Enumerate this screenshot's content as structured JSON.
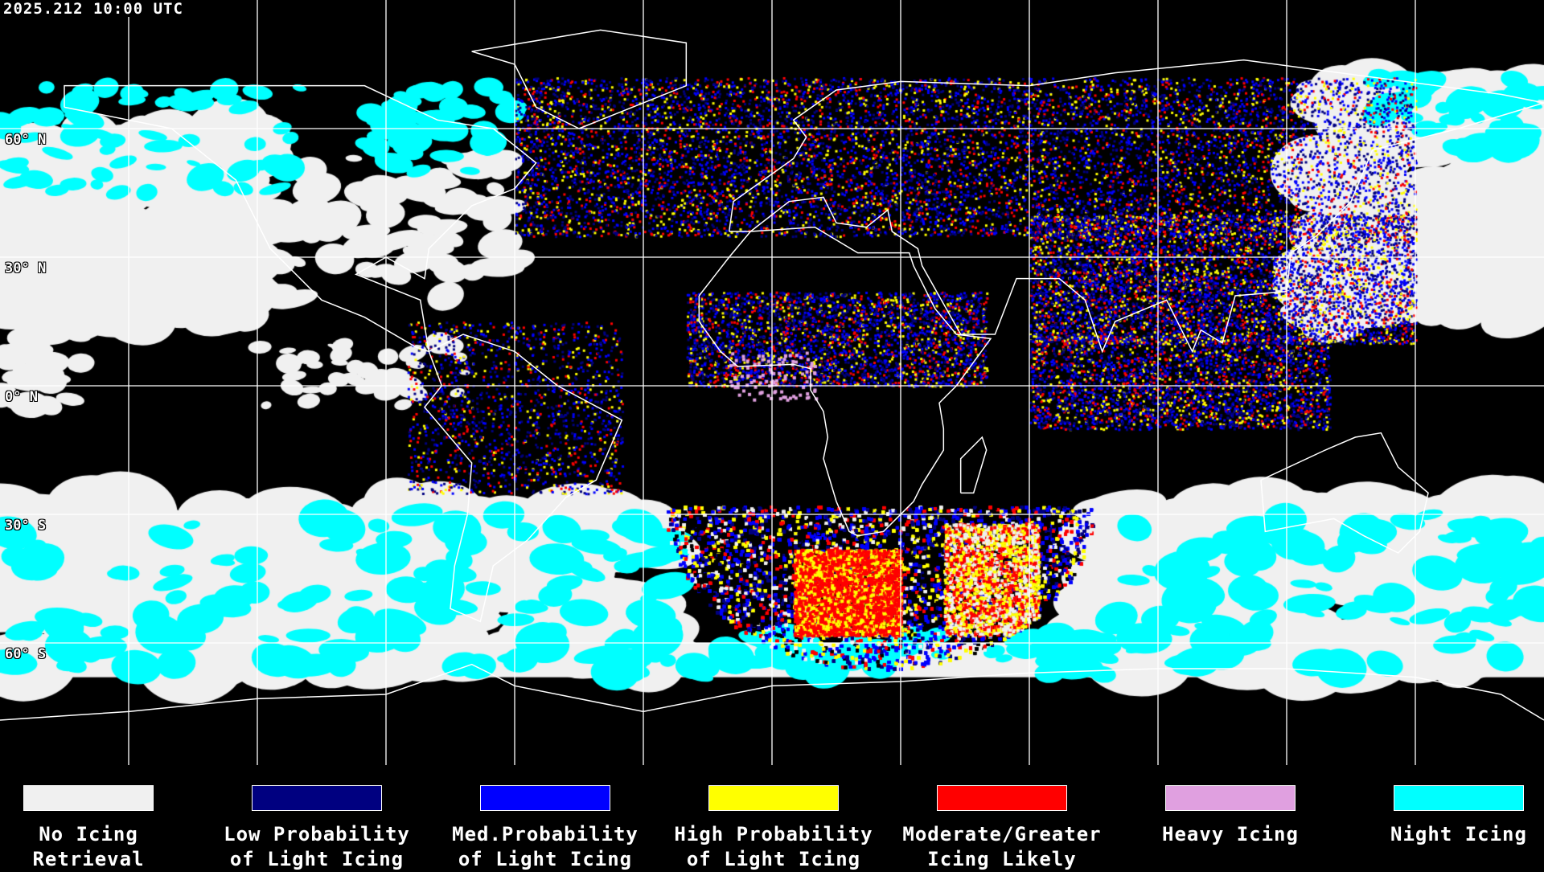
{
  "header": {
    "timestamp": "2025.212 10:00 UTC"
  },
  "map": {
    "projection": "equirectangular",
    "lat_labels": [
      "60° N",
      "30° N",
      "0° N",
      "30° S",
      "60° S"
    ],
    "grid_spacing_degrees": 30,
    "coastline_color": "#ffffff",
    "grid_color": "#ffffff"
  },
  "legend": {
    "items": [
      {
        "line1": "No Icing",
        "line2": "Retrieval",
        "color": "#f0f0f0"
      },
      {
        "line1": "Low Probability",
        "line2": "of Light Icing",
        "color": "#000080"
      },
      {
        "line1": "Med.Probability",
        "line2": "of Light Icing",
        "color": "#0000ff"
      },
      {
        "line1": "High Probability",
        "line2": "of Light Icing",
        "color": "#ffff00"
      },
      {
        "line1": "Moderate/Greater",
        "line2": "Icing Likely",
        "color": "#ff0000"
      },
      {
        "line1": "Heavy Icing",
        "line2": "",
        "color": "#e0a0e0"
      },
      {
        "line1": "Night Icing",
        "line2": "",
        "color": "#00ffff"
      }
    ]
  }
}
